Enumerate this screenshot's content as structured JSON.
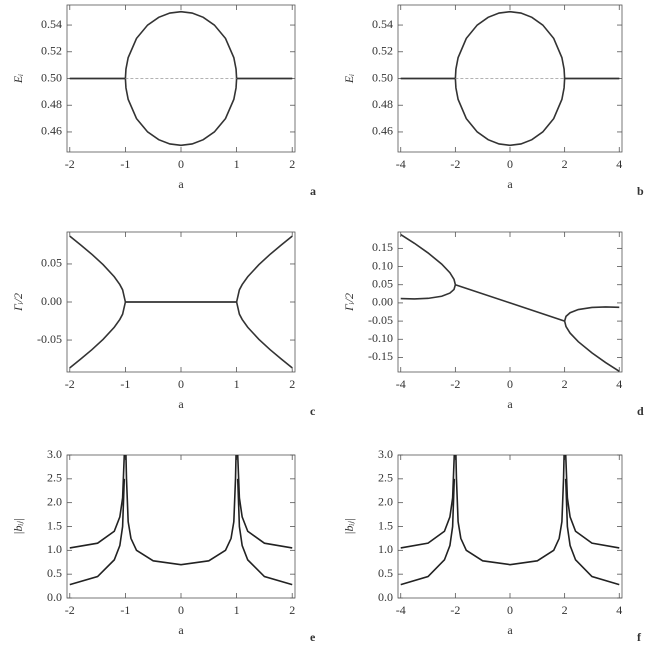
{
  "chart_data": [
    {
      "type": "line",
      "label": "a",
      "xlabel": "a",
      "ylabel": "Eᵢ",
      "x": [
        -2,
        -1.5,
        -1,
        -0.99,
        -0.95,
        -0.8,
        -0.6,
        -0.4,
        -0.2,
        0,
        0.2,
        0.4,
        0.6,
        0.8,
        0.95,
        0.99,
        1,
        1.5,
        2
      ],
      "xlim": [
        -2.05,
        2.05
      ],
      "xticks": [
        -2,
        -1,
        0,
        1,
        2
      ],
      "ylim": [
        0.445,
        0.555
      ],
      "yticks": [
        0.46,
        0.48,
        {
          "value": 0.5,
          "label": "0.50"
        },
        0.52,
        0.54
      ],
      "series": [
        {
          "color": "#333333",
          "values": [
            0.5,
            0.5,
            0.5,
            0.507,
            0.5156,
            0.53,
            0.54,
            0.5458,
            0.549,
            0.55,
            0.549,
            0.5458,
            0.54,
            0.53,
            0.5156,
            0.507,
            0.5,
            0.5,
            0.5
          ]
        },
        {
          "color": "#333333",
          "values": [
            0.5,
            0.5,
            0.5,
            0.493,
            0.4844,
            0.47,
            0.46,
            0.4542,
            0.451,
            0.45,
            0.451,
            0.4542,
            0.46,
            0.47,
            0.4844,
            0.493,
            0.5,
            0.5,
            0.5
          ]
        },
        {
          "color": "#999999",
          "dashed": true,
          "values": [
            null,
            null,
            0.5,
            0.5,
            0.5,
            0.5,
            0.5,
            0.5,
            0.5,
            0.5,
            0.5,
            0.5,
            0.5,
            0.5,
            0.5,
            0.5,
            0.5,
            null,
            null
          ]
        }
      ]
    },
    {
      "type": "line",
      "label": "b",
      "xlabel": "a",
      "ylabel": "Eᵢ",
      "x": [
        -4,
        -3,
        -2,
        -1.98,
        -1.9,
        -1.6,
        -1.2,
        -0.8,
        -0.4,
        0,
        0.4,
        0.8,
        1.2,
        1.6,
        1.9,
        1.98,
        2,
        3,
        4
      ],
      "xlim": [
        -4.1,
        4.1
      ],
      "xticks": [
        -4,
        -2,
        0,
        2,
        4
      ],
      "ylim": [
        0.445,
        0.555
      ],
      "yticks": [
        0.46,
        0.48,
        {
          "value": 0.5,
          "label": "0.50"
        },
        0.52,
        0.54
      ],
      "series": [
        {
          "color": "#333333",
          "values": [
            0.5,
            0.5,
            0.5,
            0.507,
            0.5156,
            0.53,
            0.54,
            0.5458,
            0.549,
            0.55,
            0.549,
            0.5458,
            0.54,
            0.53,
            0.5156,
            0.507,
            0.5,
            0.5,
            0.5
          ]
        },
        {
          "color": "#333333",
          "values": [
            0.5,
            0.5,
            0.5,
            0.493,
            0.4844,
            0.47,
            0.46,
            0.4542,
            0.451,
            0.45,
            0.451,
            0.4542,
            0.46,
            0.47,
            0.4844,
            0.493,
            0.5,
            0.5,
            0.5
          ]
        },
        {
          "color": "#999999",
          "dashed": true,
          "values": [
            null,
            null,
            0.5,
            0.5,
            0.5,
            0.5,
            0.5,
            0.5,
            0.5,
            0.5,
            0.5,
            0.5,
            0.5,
            0.5,
            0.5,
            0.5,
            0.5,
            null,
            null
          ]
        }
      ]
    },
    {
      "type": "line",
      "label": "c",
      "xlabel": "a",
      "ylabel": "Γᵢ/2",
      "x": [
        -2,
        -1.8,
        -1.6,
        -1.4,
        -1.2,
        -1.1,
        -1.05,
        -1,
        -0.5,
        0,
        0.5,
        1,
        1.05,
        1.1,
        1.2,
        1.4,
        1.6,
        1.8,
        2
      ],
      "xlim": [
        -2.05,
        2.05
      ],
      "xticks": [
        -2,
        -1,
        0,
        1,
        2
      ],
      "ylim": [
        -0.092,
        0.092
      ],
      "yticks": [
        -0.05,
        {
          "value": 0,
          "label": "0.00"
        },
        0.05
      ],
      "series": [
        {
          "color": "#333333",
          "values": [
            0.0866,
            0.0748,
            0.0625,
            0.049,
            0.0332,
            0.0229,
            0.016,
            0,
            0,
            0,
            0,
            0,
            0.016,
            0.0229,
            0.0332,
            0.049,
            0.0625,
            0.0748,
            0.0866
          ]
        },
        {
          "color": "#333333",
          "values": [
            -0.0866,
            -0.0748,
            -0.0625,
            -0.049,
            -0.0332,
            -0.0229,
            -0.016,
            0,
            0,
            0,
            0,
            0,
            -0.016,
            -0.0229,
            -0.0332,
            -0.049,
            -0.0625,
            -0.0748,
            -0.0866
          ]
        }
      ]
    },
    {
      "type": "line",
      "label": "d",
      "xlabel": "a",
      "ylabel": "Γᵢ/2",
      "x": [
        -4,
        -3.5,
        -3,
        -2.5,
        -2.2,
        -2.05,
        -2,
        0,
        2,
        2.05,
        2.2,
        2.5,
        3,
        3.5,
        4
      ],
      "xlim": [
        -4.1,
        4.1
      ],
      "xticks": [
        -4,
        -2,
        0,
        2,
        4
      ],
      "ylim": [
        -0.19,
        0.195
      ],
      "yticks": [
        -0.15,
        {
          "value": -0.1,
          "label": "-0.10"
        },
        -0.05,
        {
          "value": 0,
          "label": "0.00"
        },
        0.05,
        {
          "value": 0.1,
          "label": "0.10"
        },
        0.15
      ],
      "series": [
        {
          "color": "#333333",
          "values": [
            0.188,
            0.164,
            0.1375,
            0.1067,
            0.083,
            0.065,
            0.05,
            0,
            -0.05,
            -0.065,
            -0.083,
            -0.1067,
            -0.1375,
            -0.164,
            -0.188
          ]
        },
        {
          "color": "#333333",
          "values": [
            0.012,
            0.011,
            0.0125,
            0.0183,
            0.027,
            0.037,
            0.05,
            null,
            -0.05,
            -0.037,
            -0.027,
            -0.0183,
            -0.0125,
            -0.011,
            -0.012
          ]
        }
      ]
    },
    {
      "type": "line",
      "label": "e",
      "xlabel": "a",
      "ylabel": "|bᵢⱼ|",
      "x": [
        -2,
        -1.5,
        -1.2,
        -1.1,
        -1.05,
        -1.02,
        -0.99,
        -0.98,
        -0.95,
        -0.9,
        -0.8,
        -0.5,
        0,
        0.5,
        0.8,
        0.9,
        0.95,
        0.98,
        0.99,
        1.02,
        1.05,
        1.1,
        1.2,
        1.5,
        2
      ],
      "xlim": [
        -2.05,
        2.05
      ],
      "xticks": [
        -2,
        -1,
        0,
        1,
        2
      ],
      "ylim": [
        0,
        3
      ],
      "yticks": [
        {
          "value": 0,
          "label": "0.0"
        },
        0.5,
        {
          "value": 1,
          "label": "1.0"
        },
        1.5,
        {
          "value": 2,
          "label": "2.0"
        },
        2.5,
        {
          "value": 3,
          "label": "3.0"
        }
      ],
      "series": [
        {
          "color": "#222222",
          "values": [
            1.05,
            1.15,
            1.4,
            1.7,
            2.1,
            3.0,
            null,
            null,
            null,
            null,
            null,
            null,
            null,
            null,
            null,
            null,
            null,
            null,
            null,
            3.0,
            2.1,
            1.7,
            1.4,
            1.15,
            1.05
          ]
        },
        {
          "color": "#222222",
          "values": [
            0.28,
            0.45,
            0.8,
            1.1,
            1.5,
            2.5,
            null,
            null,
            null,
            null,
            null,
            null,
            null,
            null,
            null,
            null,
            null,
            null,
            null,
            2.5,
            1.5,
            1.1,
            0.8,
            0.45,
            0.28
          ]
        },
        {
          "color": "#222222",
          "values": [
            null,
            null,
            null,
            null,
            null,
            null,
            3.0,
            2.5,
            1.6,
            1.25,
            1.0,
            0.78,
            0.7,
            0.78,
            1.0,
            1.25,
            1.6,
            2.5,
            3.0,
            null,
            null,
            null,
            null,
            null,
            null
          ]
        }
      ]
    },
    {
      "type": "line",
      "label": "f",
      "xlabel": "a",
      "ylabel": "|bᵢⱼ|",
      "x": [
        -4,
        -3,
        -2.4,
        -2.2,
        -2.1,
        -2.04,
        -1.98,
        -1.96,
        -1.9,
        -1.8,
        -1.6,
        -1,
        0,
        1,
        1.6,
        1.8,
        1.9,
        1.96,
        1.98,
        2.04,
        2.1,
        2.2,
        2.4,
        3,
        4
      ],
      "xlim": [
        -4.1,
        4.1
      ],
      "xticks": [
        -4,
        -2,
        0,
        2,
        4
      ],
      "ylim": [
        0,
        3
      ],
      "yticks": [
        {
          "value": 0,
          "label": "0.0"
        },
        0.5,
        {
          "value": 1,
          "label": "1.0"
        },
        1.5,
        {
          "value": 2,
          "label": "2.0"
        },
        2.5,
        {
          "value": 3,
          "label": "3.0"
        }
      ],
      "series": [
        {
          "color": "#222222",
          "values": [
            1.05,
            1.15,
            1.4,
            1.7,
            2.1,
            3.0,
            null,
            null,
            null,
            null,
            null,
            null,
            null,
            null,
            null,
            null,
            null,
            null,
            null,
            3.0,
            2.1,
            1.7,
            1.4,
            1.15,
            1.05
          ]
        },
        {
          "color": "#222222",
          "values": [
            0.28,
            0.45,
            0.8,
            1.1,
            1.5,
            2.5,
            null,
            null,
            null,
            null,
            null,
            null,
            null,
            null,
            null,
            null,
            null,
            null,
            null,
            2.5,
            1.5,
            1.1,
            0.8,
            0.45,
            0.28
          ]
        },
        {
          "color": "#222222",
          "values": [
            null,
            null,
            null,
            null,
            null,
            null,
            3.0,
            2.5,
            1.6,
            1.25,
            1.0,
            0.78,
            0.7,
            0.78,
            1.0,
            1.25,
            1.6,
            2.5,
            3.0,
            null,
            null,
            null,
            null,
            null,
            null
          ]
        }
      ]
    }
  ]
}
